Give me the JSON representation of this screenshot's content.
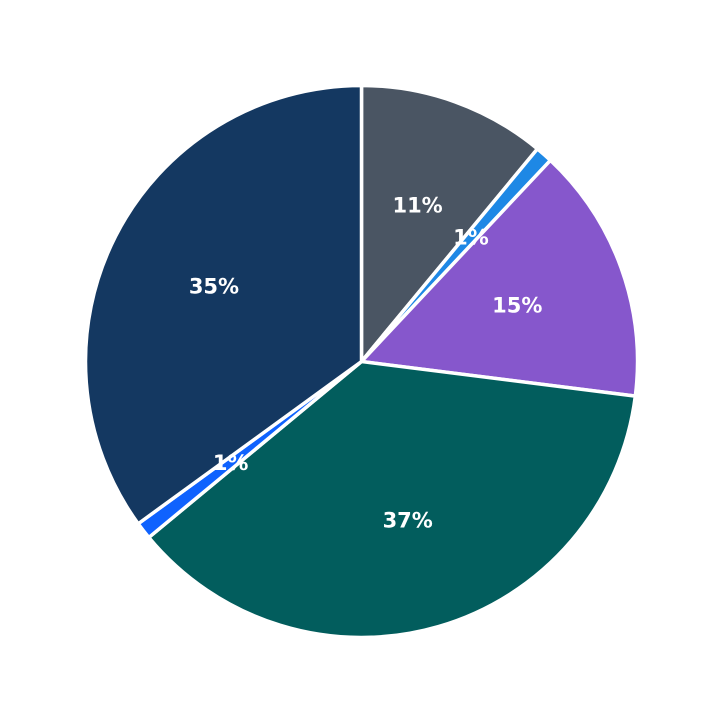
{
  "chart_data": {
    "type": "pie",
    "start": "top",
    "direction": "clockwise",
    "slices": [
      {
        "value": 11,
        "label": "11%",
        "color": "#4a5563"
      },
      {
        "value": 1,
        "label": "1%",
        "color": "#1e88e5"
      },
      {
        "value": 15,
        "label": "15%",
        "color": "#8657cc"
      },
      {
        "value": 37,
        "label": "37%",
        "color": "#025d5d"
      },
      {
        "value": 1,
        "label": "1%",
        "color": "#0f62fe"
      },
      {
        "value": 35,
        "label": "35%",
        "color": "#143861"
      }
    ]
  }
}
